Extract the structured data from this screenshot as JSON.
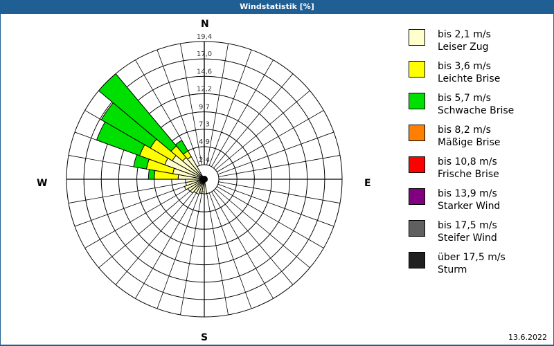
{
  "window": {
    "title": "Windstatistik [%]"
  },
  "compass": {
    "n": "N",
    "e": "E",
    "s": "S",
    "w": "W"
  },
  "footer": {
    "date": "13.6.2022"
  },
  "legend": [
    {
      "range": "bis 2,1 m/s",
      "name": "Leiser Zug",
      "color": "#ffffcc"
    },
    {
      "range": "bis 3,6 m/s",
      "name": "Leichte Brise",
      "color": "#ffff00"
    },
    {
      "range": "bis 5,7 m/s",
      "name": "Schwache Brise",
      "color": "#00e000"
    },
    {
      "range": "bis 8,2 m/s",
      "name": "Mäßige Brise",
      "color": "#ff8000"
    },
    {
      "range": "bis 10,8 m/s",
      "name": "Frische Brise",
      "color": "#ff0000"
    },
    {
      "range": "bis 13,9 m/s",
      "name": "Starker Wind",
      "color": "#800080"
    },
    {
      "range": "bis 17,5 m/s",
      "name": "Steifer Wind",
      "color": "#606060"
    },
    {
      "range": "über 17,5 m/s",
      "name": "Sturm",
      "color": "#202020"
    }
  ],
  "chart_data": {
    "type": "wind-rose",
    "title": "Windstatistik [%]",
    "ring_labels": [
      "2,4",
      "4,9",
      "7,3",
      "9,7",
      "12,2",
      "14,6",
      "17,0",
      "19,4"
    ],
    "ring_values": [
      2.4,
      4.9,
      7.3,
      9.7,
      12.2,
      14.6,
      17.0,
      19.4
    ],
    "sector_width_deg": 10,
    "series_order": [
      "bis 2,1 m/s",
      "bis 3,6 m/s",
      "bis 5,7 m/s"
    ],
    "sectors": [
      {
        "dir": 325,
        "cumulative": [
          4.0,
          4.9,
          6.6
        ]
      },
      {
        "dir": 315,
        "cumulative": [
          4.3,
          6.4,
          19.4
        ]
      },
      {
        "dir": 305,
        "cumulative": [
          5.5,
          9.0,
          16.8
        ]
      },
      {
        "dir": 295,
        "cumulative": [
          6.2,
          9.9,
          16.2
        ]
      },
      {
        "dir": 285,
        "cumulative": [
          4.8,
          8.5,
          10.3
        ]
      },
      {
        "dir": 275,
        "cumulative": [
          4.0,
          7.3,
          8.1
        ]
      },
      {
        "dir": 265,
        "cumulative": [
          3.0,
          3.0,
          3.0
        ]
      },
      {
        "dir": 255,
        "cumulative": [
          3.0,
          3.0,
          3.0
        ]
      },
      {
        "dir": 245,
        "cumulative": [
          3.3,
          3.3,
          3.3
        ]
      },
      {
        "dir": 235,
        "cumulative": [
          3.0,
          3.0,
          3.0
        ]
      },
      {
        "dir": 225,
        "cumulative": [
          2.9,
          2.9,
          2.9
        ]
      },
      {
        "dir": 215,
        "cumulative": [
          2.6,
          2.6,
          2.6
        ]
      },
      {
        "dir": 205,
        "cumulative": [
          2.6,
          2.6,
          2.6
        ]
      },
      {
        "dir": 195,
        "cumulative": [
          2.2,
          2.2,
          2.2
        ]
      },
      {
        "dir": 185,
        "cumulative": [
          2.1,
          2.1,
          2.1
        ]
      },
      {
        "dir": 175,
        "cumulative": [
          2.4,
          2.4,
          2.4
        ]
      }
    ]
  }
}
